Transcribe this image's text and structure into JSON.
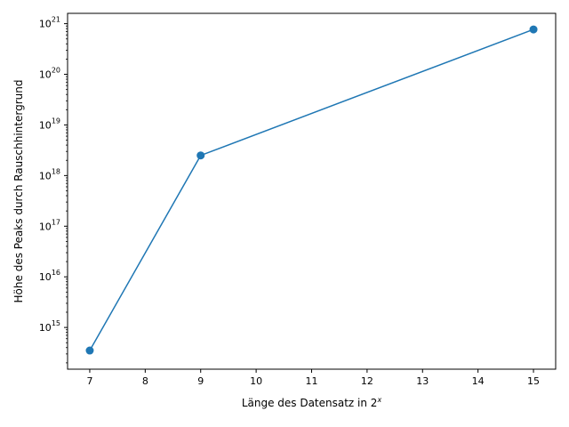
{
  "chart_data": {
    "type": "line",
    "title": "",
    "xlabel": "Länge des Datensatz in 2",
    "xlabel_superscript": "x",
    "ylabel": "Höhe des Peaks durch Rauschhintergrund",
    "x": [
      7,
      9,
      15
    ],
    "series": [
      {
        "name": "",
        "values": [
          350000000000000.0,
          2.5e+18,
          7.7e+20
        ],
        "color": "#1f77b4",
        "marker": "circle"
      }
    ],
    "xlim": [
      6.6,
      15.4
    ],
    "ylim": [
      150000000000000.0,
      1.6e+21
    ],
    "yscale": "log",
    "grid": false,
    "legend": "none",
    "xticks": [
      {
        "value": 7,
        "label": "7"
      },
      {
        "value": 8,
        "label": "8"
      },
      {
        "value": 9,
        "label": "9"
      },
      {
        "value": 10,
        "label": "10"
      },
      {
        "value": 11,
        "label": "11"
      },
      {
        "value": 12,
        "label": "12"
      },
      {
        "value": 13,
        "label": "13"
      },
      {
        "value": 14,
        "label": "14"
      },
      {
        "value": 15,
        "label": "15"
      }
    ],
    "yticks": [
      {
        "value": 1000000000000000.0,
        "base": "10",
        "exp": "15"
      },
      {
        "value": 1e+16,
        "base": "10",
        "exp": "16"
      },
      {
        "value": 1e+17,
        "base": "10",
        "exp": "17"
      },
      {
        "value": 1e+18,
        "base": "10",
        "exp": "18"
      },
      {
        "value": 1e+19,
        "base": "10",
        "exp": "19"
      },
      {
        "value": 1e+20,
        "base": "10",
        "exp": "20"
      },
      {
        "value": 1e+21,
        "base": "10",
        "exp": "21"
      }
    ]
  }
}
